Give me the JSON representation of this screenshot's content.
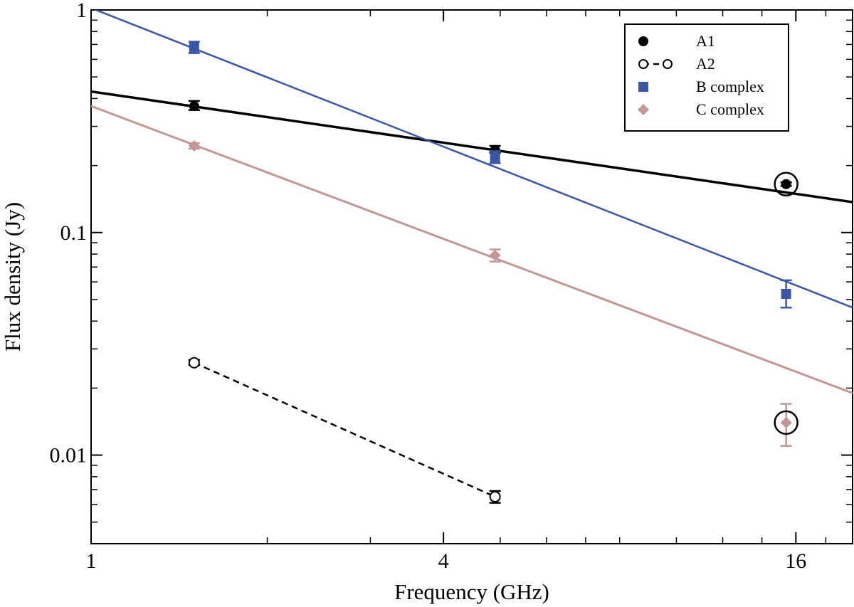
{
  "chart_data": {
    "type": "scatter",
    "xscale": "log2",
    "yscale": "log10",
    "xlabel": "Frequency (GHz)",
    "ylabel": "Flux density (Jy)",
    "xlim": [
      1,
      20
    ],
    "ylim": [
      0.004,
      1
    ],
    "xticks": [
      {
        "value": 1,
        "label": "1"
      },
      {
        "value": 4,
        "label": "4"
      },
      {
        "value": 16,
        "label": "16"
      }
    ],
    "xminor": [
      2,
      8,
      3,
      5,
      6,
      7,
      10,
      12,
      14,
      18
    ],
    "yticks": [
      {
        "value": 1,
        "label": "1"
      },
      {
        "value": 0.1,
        "label": "0.1"
      },
      {
        "value": 0.01,
        "label": "0.01"
      }
    ],
    "yminor": [
      0.005,
      0.006,
      0.007,
      0.008,
      0.009,
      0.02,
      0.03,
      0.04,
      0.05,
      0.06,
      0.07,
      0.08,
      0.09,
      0.2,
      0.3,
      0.4,
      0.5,
      0.6,
      0.7,
      0.8,
      0.9
    ],
    "legend_position": "top-right",
    "colors": {
      "A1": "#000000",
      "A2": "#000000",
      "B": "#3a56a8",
      "C": "#c49694"
    },
    "series": [
      {
        "name": "A1",
        "marker": "filled-circle",
        "color": "#000000",
        "points": [
          {
            "x": 1.5,
            "y": 0.37,
            "ylo": 0.355,
            "yhi": 0.39
          },
          {
            "x": 4.9,
            "y": 0.235,
            "ylo": 0.228,
            "yhi": 0.245
          },
          {
            "x": 15.4,
            "y": 0.165,
            "ylo": 0.162,
            "yhi": 0.168
          }
        ],
        "fit": {
          "x": [
            1,
            20
          ],
          "y": [
            0.43,
            0.137
          ],
          "style": "solid",
          "width": 3.5
        }
      },
      {
        "name": "A2",
        "marker": "open-circle",
        "color": "#000000",
        "points": [
          {
            "x": 1.5,
            "y": 0.026,
            "ylo": 0.0254,
            "yhi": 0.0268
          },
          {
            "x": 4.9,
            "y": 0.0065,
            "ylo": 0.0061,
            "yhi": 0.0069
          }
        ],
        "fit": {
          "x": [
            1.5,
            4.9
          ],
          "y": [
            0.026,
            0.0065
          ],
          "style": "dashed",
          "width": 2.5
        }
      },
      {
        "name": "B complex",
        "marker": "filled-square",
        "color": "#3a56a8",
        "points": [
          {
            "x": 1.5,
            "y": 0.68,
            "ylo": 0.64,
            "yhi": 0.72
          },
          {
            "x": 4.9,
            "y": 0.218,
            "ylo": 0.205,
            "yhi": 0.232
          },
          {
            "x": 15.4,
            "y": 0.053,
            "ylo": 0.046,
            "yhi": 0.061
          }
        ],
        "fit": {
          "x": [
            1,
            20
          ],
          "y": [
            1.02,
            0.046
          ],
          "style": "solid",
          "width": 2.5
        }
      },
      {
        "name": "C complex",
        "marker": "filled-diamond",
        "color": "#c49694",
        "points": [
          {
            "x": 1.5,
            "y": 0.245,
            "ylo": 0.238,
            "yhi": 0.252
          },
          {
            "x": 4.9,
            "y": 0.079,
            "ylo": 0.074,
            "yhi": 0.084
          },
          {
            "x": 15.4,
            "y": 0.014,
            "ylo": 0.011,
            "yhi": 0.017
          }
        ],
        "fit": {
          "x": [
            1,
            20
          ],
          "y": [
            0.37,
            0.019
          ],
          "style": "solid",
          "width": 3
        }
      }
    ],
    "highlighted_points": [
      {
        "x": 15.4,
        "y": 0.165,
        "note": "circled"
      },
      {
        "x": 15.4,
        "y": 0.014,
        "note": "circled"
      }
    ],
    "legend": [
      {
        "label": "A1",
        "marker": "filled-circle",
        "color": "#000000"
      },
      {
        "label": "A2",
        "marker": "open-circle-dashed",
        "color": "#000000"
      },
      {
        "label": "B complex",
        "marker": "filled-square",
        "color": "#3a56a8"
      },
      {
        "label": "C complex",
        "marker": "filled-diamond",
        "color": "#c49694"
      }
    ]
  }
}
